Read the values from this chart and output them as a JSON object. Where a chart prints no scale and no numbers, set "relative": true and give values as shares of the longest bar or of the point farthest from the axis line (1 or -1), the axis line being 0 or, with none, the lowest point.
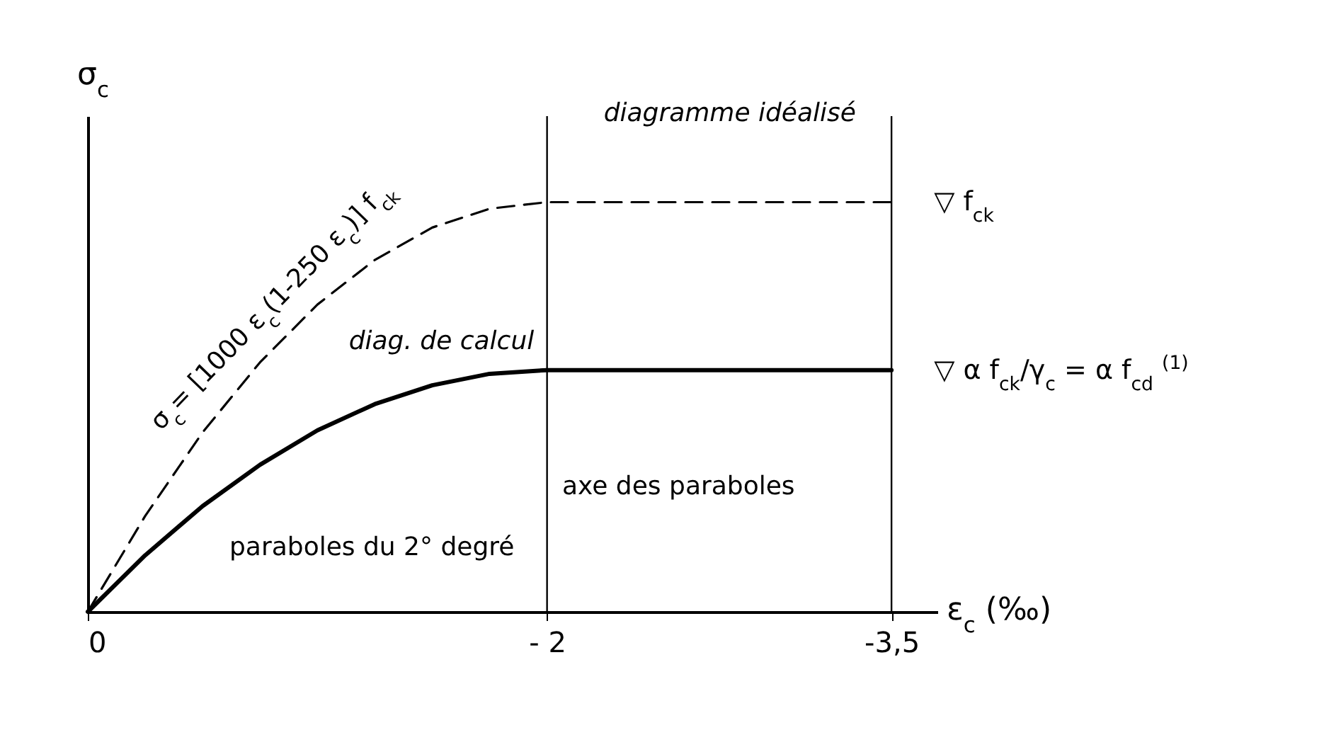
{
  "chart_data": {
    "type": "line",
    "relative": true,
    "xlabel": "ε$_{c}$ (‰)",
    "ylabel": "σ$_{c}$",
    "x": [
      0,
      -0.25,
      -0.5,
      -0.75,
      -1,
      -1.25,
      -1.5,
      -1.75,
      -2,
      -3.5
    ],
    "xlim": [
      0,
      -3.7
    ],
    "xticks": [
      0,
      {
        "value": -2,
        "label": "- 2"
      },
      {
        "value": -3.5,
        "label": "-3,5"
      }
    ],
    "series": [
      {
        "name": "diagramme idéalisé",
        "color": "#000000",
        "line_style": "dashed",
        "values": [
          0,
          0.234,
          0.438,
          0.609,
          0.75,
          0.859,
          0.938,
          0.984,
          1,
          1
        ]
      },
      {
        "name": "diag. de calcul",
        "color": "#000000",
        "line_style": "solid",
        "values": [
          0,
          0.138,
          0.258,
          0.359,
          0.443,
          0.507,
          0.553,
          0.581,
          0.59,
          0.59
        ]
      }
    ],
    "ref_lines": [
      {
        "axis": "x",
        "value": -2
      },
      {
        "axis": "x",
        "value": -3.5
      }
    ],
    "annotations": [
      "σ$_{c}$= [1000 ε$_{c}$(1-250 ε$_{c}$)] f$_{ck}$",
      "paraboles du 2° degré",
      "axe des paraboles",
      {
        "text": "▽  f$_{ck}$",
        "x": -3.5,
        "y": 1
      },
      {
        "text": "▽  α f$_{ck}$/γ$_{c}$ = α f$_{cd}$ $^{(1)}$",
        "x": -3.5,
        "y": 0.59
      }
    ],
    "marker": "none"
  }
}
